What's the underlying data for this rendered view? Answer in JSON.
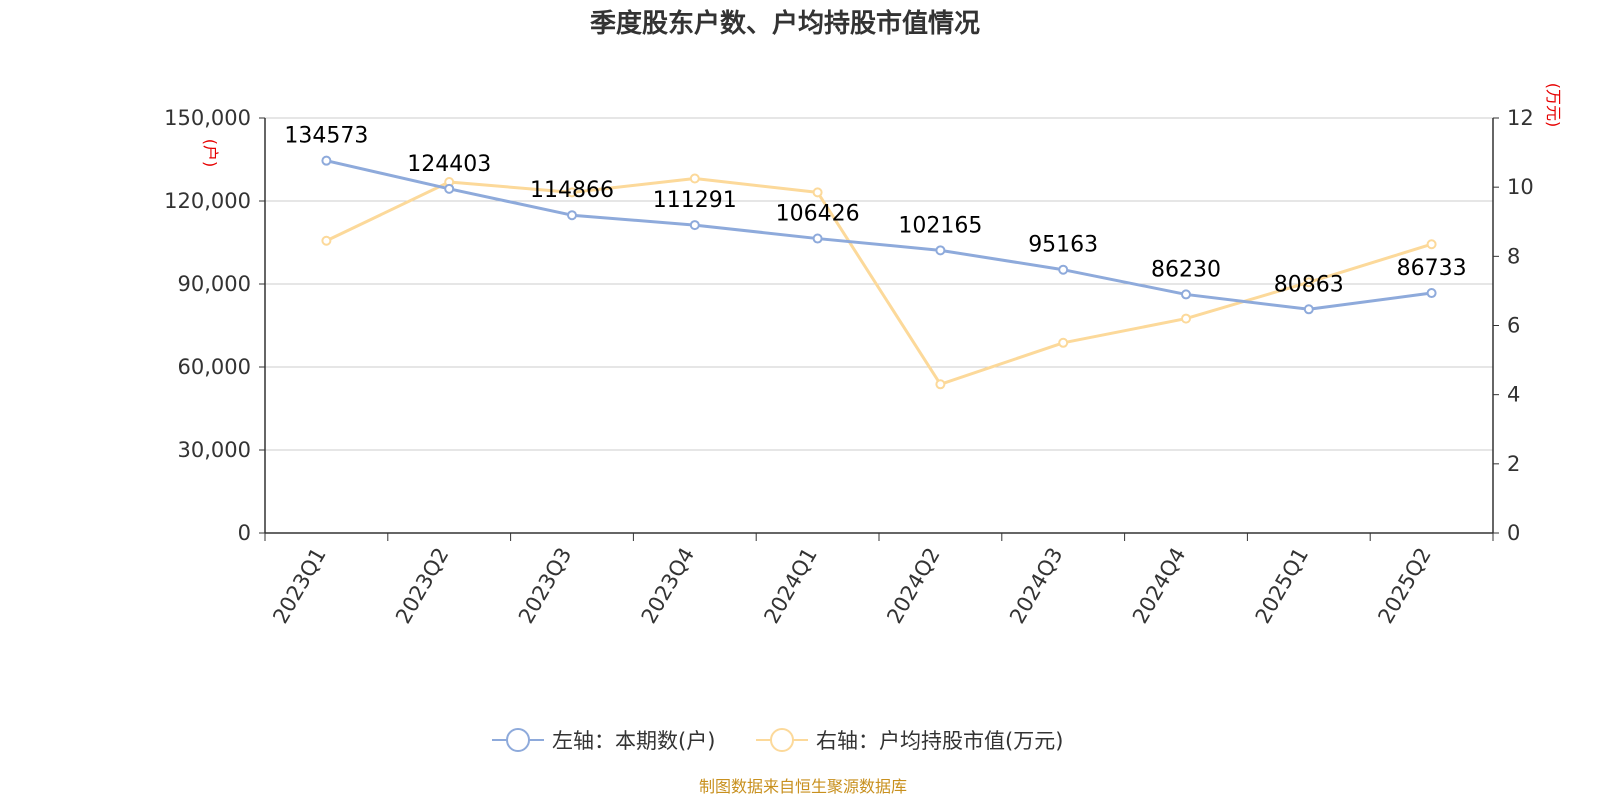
{
  "chart_data": {
    "type": "line",
    "title": "季度股东户数、户均持股市值情况",
    "categories": [
      "2023Q1",
      "2023Q2",
      "2023Q3",
      "2023Q4",
      "2024Q1",
      "2024Q2",
      "2024Q3",
      "2024Q4",
      "2025Q1",
      "2025Q2"
    ],
    "left_axis": {
      "unit": "(户)",
      "ylim": [
        0,
        150000
      ],
      "ticks": [
        "0",
        "30,000",
        "60,000",
        "90,000",
        "120,000",
        "150,000"
      ],
      "tick_values": [
        0,
        30000,
        60000,
        90000,
        120000,
        150000
      ]
    },
    "right_axis": {
      "unit": "(万元)",
      "ylim": [
        0,
        12
      ],
      "ticks": [
        "0",
        "2",
        "4",
        "6",
        "8",
        "10",
        "12"
      ],
      "tick_values": [
        0,
        2,
        4,
        6,
        8,
        10,
        12
      ]
    },
    "series": [
      {
        "name": "左轴：本期数(户)",
        "axis": "left",
        "color": "#8eaadb",
        "values": [
          134573,
          124403,
          114866,
          111291,
          106426,
          102165,
          95163,
          86230,
          80863,
          86733
        ],
        "labels": [
          "134573",
          "124403",
          "114866",
          "111291",
          "106426",
          "102165",
          "95163",
          "86230",
          "80863",
          "86733"
        ]
      },
      {
        "name": "右轴：户均持股市值(万元)",
        "axis": "right",
        "color": "#fcd99a",
        "values": [
          8.45,
          10.15,
          9.85,
          10.25,
          9.85,
          4.3,
          5.5,
          6.2,
          7.25,
          8.35
        ]
      }
    ],
    "grid": true,
    "legend_position": "bottom",
    "source": "制图数据来自恒生聚源数据库"
  }
}
